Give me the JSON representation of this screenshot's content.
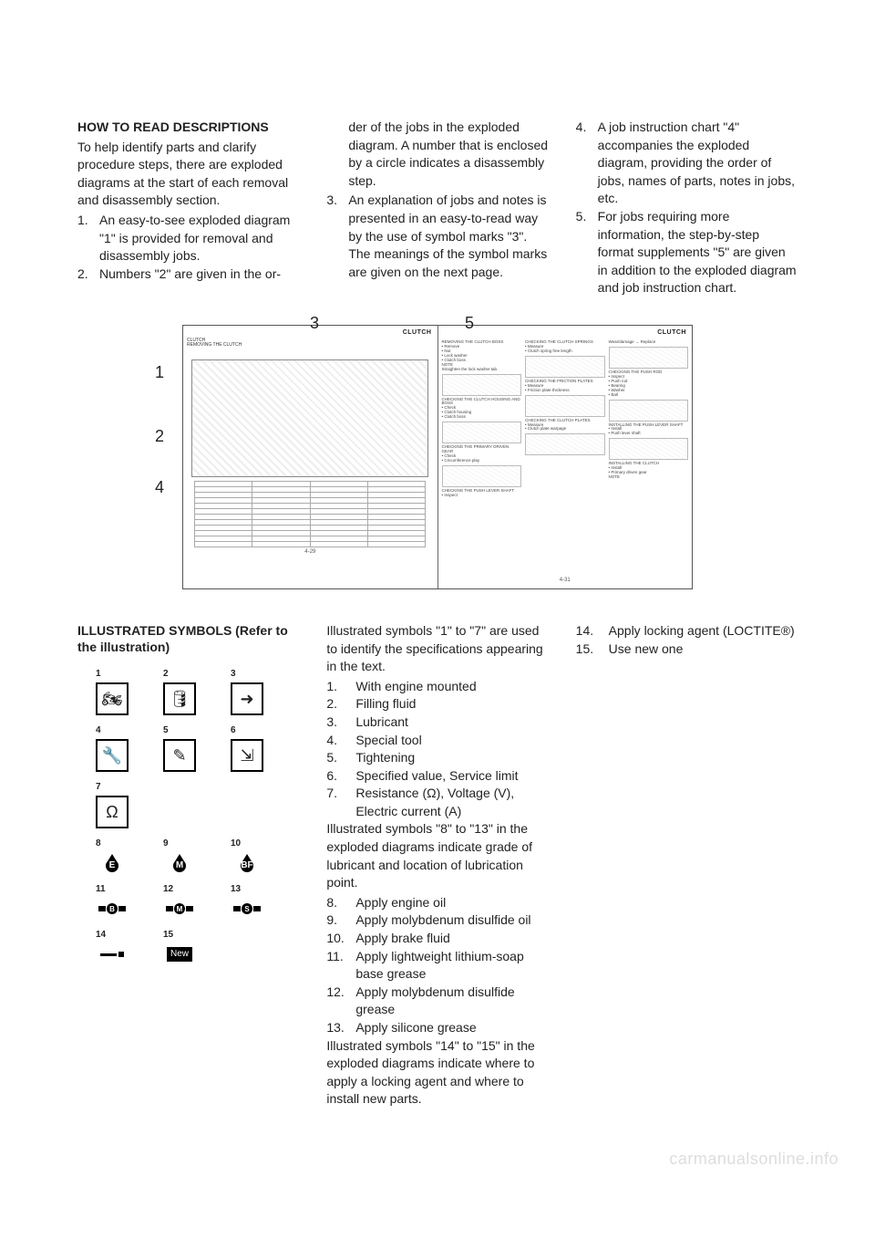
{
  "top": {
    "col1": {
      "heading": "HOW TO READ DESCRIPTIONS",
      "para": "To help identify parts and clarify procedure steps, there are exploded diagrams at the start of each removal and disassembly section.",
      "items": [
        "An easy-to-see exploded diagram \"1\" is provided for removal and disassembly jobs.",
        "Numbers \"2\" are given in the or-"
      ]
    },
    "col2": {
      "cont": "der of the jobs in the exploded diagram. A number that is enclosed by a circle indicates a disassembly step.",
      "items": [
        "An explanation of jobs and notes is presented in an easy-to-read way by the use of symbol marks \"3\". The meanings of the symbol marks are given on the next page."
      ]
    },
    "col3": {
      "items": [
        "A job instruction chart \"4\" accompanies the exploded diagram, providing the order of jobs, names of parts, notes in jobs, etc.",
        "For jobs requiring more information, the step-by-step format supplements \"5\" are given in addition to the exploded diagram and job instruction chart."
      ]
    }
  },
  "diagram": {
    "callouts": {
      "c1": "1",
      "c2": "2",
      "c3": "3",
      "c4": "4",
      "c5": "5"
    },
    "left_title": "CLUTCH",
    "right_title": "CLUTCH",
    "page_left": "4-29",
    "page_right": "4-31"
  },
  "lower": {
    "col1": {
      "heading": "ILLUSTRATED SYMBOLS (Refer to the illustration)",
      "symbols": [
        {
          "n": "1",
          "kind": "box",
          "glyph": "🏍"
        },
        {
          "n": "2",
          "kind": "box",
          "glyph": "🛢"
        },
        {
          "n": "3",
          "kind": "box",
          "glyph": "➜"
        },
        {
          "n": "4",
          "kind": "box",
          "glyph": "🔧"
        },
        {
          "n": "5",
          "kind": "box",
          "glyph": "✎"
        },
        {
          "n": "6",
          "kind": "box",
          "glyph": "⇲"
        },
        {
          "n": "7",
          "kind": "box",
          "glyph": "Ω"
        },
        {
          "n": "",
          "kind": "blank",
          "glyph": ""
        },
        {
          "n": "",
          "kind": "blank",
          "glyph": ""
        },
        {
          "n": "8",
          "kind": "drop",
          "glyph": "E"
        },
        {
          "n": "9",
          "kind": "drop",
          "glyph": "M"
        },
        {
          "n": "10",
          "kind": "drop",
          "glyph": "BF"
        },
        {
          "n": "11",
          "kind": "grease",
          "glyph": "B"
        },
        {
          "n": "12",
          "kind": "grease",
          "glyph": "M"
        },
        {
          "n": "13",
          "kind": "grease",
          "glyph": "S"
        },
        {
          "n": "14",
          "kind": "thread",
          "glyph": ""
        },
        {
          "n": "15",
          "kind": "new",
          "glyph": "New"
        },
        {
          "n": "",
          "kind": "blank",
          "glyph": ""
        }
      ]
    },
    "col2": {
      "intro": "Illustrated symbols \"1\" to \"7\" are used to identify the specifications appearing in the text.",
      "list1": [
        "With engine mounted",
        "Filling fluid",
        "Lubricant",
        "Special tool",
        "Tightening",
        "Specified value, Service limit",
        "Resistance (Ω), Voltage (V), Electric current (A)"
      ],
      "mid": "Illustrated symbols \"8\" to \"13\" in the exploded diagrams indicate grade of lubricant and location of lubrication point.",
      "list2": [
        "Apply engine oil",
        "Apply molybdenum disulfide oil",
        "Apply brake fluid",
        "Apply lightweight lithium-soap base grease",
        "Apply molybdenum disulfide grease",
        "Apply silicone grease"
      ],
      "outro": "Illustrated symbols \"14\" to \"15\" in the exploded diagrams indicate where to apply a locking agent and where to install new parts."
    },
    "col3": {
      "list": [
        {
          "n": "14.",
          "t": "Apply locking agent (LOCTITE®)"
        },
        {
          "n": "15.",
          "t": "Use new one"
        }
      ]
    }
  },
  "watermark": "carmanualsonline.info"
}
